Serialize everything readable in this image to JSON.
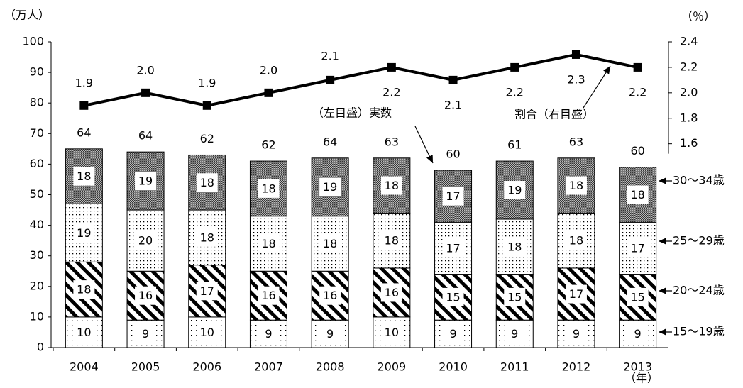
{
  "chart_data": {
    "type": "stacked-bar-line",
    "annotations": {
      "left_unit": "（万人）",
      "right_unit": "（％）",
      "x_unit": "（年）",
      "bar_note": "（左目盛）実数",
      "line_note": "割合（右目盛）"
    },
    "categories": [
      "2004",
      "2005",
      "2006",
      "2007",
      "2008",
      "2009",
      "2010",
      "2011",
      "2012",
      "2013"
    ],
    "series": [
      {
        "name": "15～19歳",
        "values": [
          10,
          9,
          10,
          9,
          9,
          10,
          9,
          9,
          9,
          9
        ]
      },
      {
        "name": "20～24歳",
        "values": [
          18,
          16,
          17,
          16,
          16,
          16,
          15,
          15,
          17,
          15
        ]
      },
      {
        "name": "25～29歳",
        "values": [
          19,
          20,
          18,
          18,
          18,
          18,
          17,
          18,
          18,
          17
        ]
      },
      {
        "name": "30～34歳",
        "values": [
          18,
          19,
          18,
          18,
          19,
          18,
          17,
          19,
          18,
          18
        ]
      },
      {
        "name": "割合",
        "type": "line",
        "axis": "y2",
        "color": "#000000",
        "values": [
          1.9,
          2.0,
          1.9,
          2.0,
          2.1,
          2.2,
          2.1,
          2.2,
          2.3,
          2.2
        ],
        "value_labels": [
          "1.9",
          "2.0",
          "1.9",
          "2.0",
          "2.1",
          "2.2",
          "2.1",
          "2.2",
          "2.3",
          "2.2"
        ]
      }
    ],
    "totals": [
      64,
      64,
      62,
      62,
      64,
      63,
      60,
      61,
      63,
      60
    ],
    "ylim": [
      0,
      100
    ],
    "yticks": [
      0,
      10,
      20,
      30,
      40,
      50,
      60,
      70,
      80,
      90,
      100
    ],
    "y2lim": [
      0,
      2.4
    ],
    "y2ticks": [
      1.6,
      1.8,
      {
        "value": 2,
        "label": "2.0"
      },
      2.2,
      2.4
    ]
  }
}
